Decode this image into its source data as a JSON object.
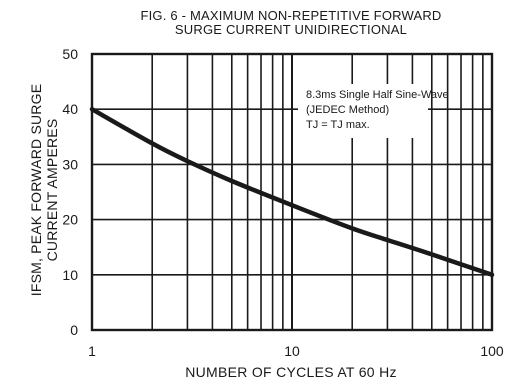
{
  "chart_data": {
    "type": "line",
    "title": "FIG. 6 - MAXIMUM NON-REPETITIVE FORWARD",
    "subtitle": "SURGE CURRENT UNIDIRECTIONAL",
    "xlabel": "NUMBER OF CYCLES AT 60 Hz",
    "ylabel_line1": "IFSM, PEAK FORWARD SURGE",
    "ylabel_line2": "CURRENT AMPERES",
    "x_scale": "log",
    "xlim": [
      1,
      100
    ],
    "ylim": [
      0,
      50
    ],
    "x_ticks": [
      "1",
      "10",
      "100"
    ],
    "y_ticks": [
      "0",
      "10",
      "20",
      "30",
      "40",
      "50"
    ],
    "grid": true,
    "annotation": {
      "line1": "8.3ms Single Half Sine-Wave",
      "line2": "(JEDEC Method)",
      "line3": "TJ = TJ max."
    },
    "series": [
      {
        "x": [
          1,
          2,
          3,
          5,
          10,
          20,
          30,
          50,
          100
        ],
        "y": [
          40,
          33.8,
          30.6,
          27,
          22.6,
          18.4,
          16.3,
          13.7,
          10
        ]
      }
    ]
  },
  "colors": {
    "line": "#1a1a1a",
    "grid": "#1a1a1a",
    "background": "#ffffff"
  }
}
